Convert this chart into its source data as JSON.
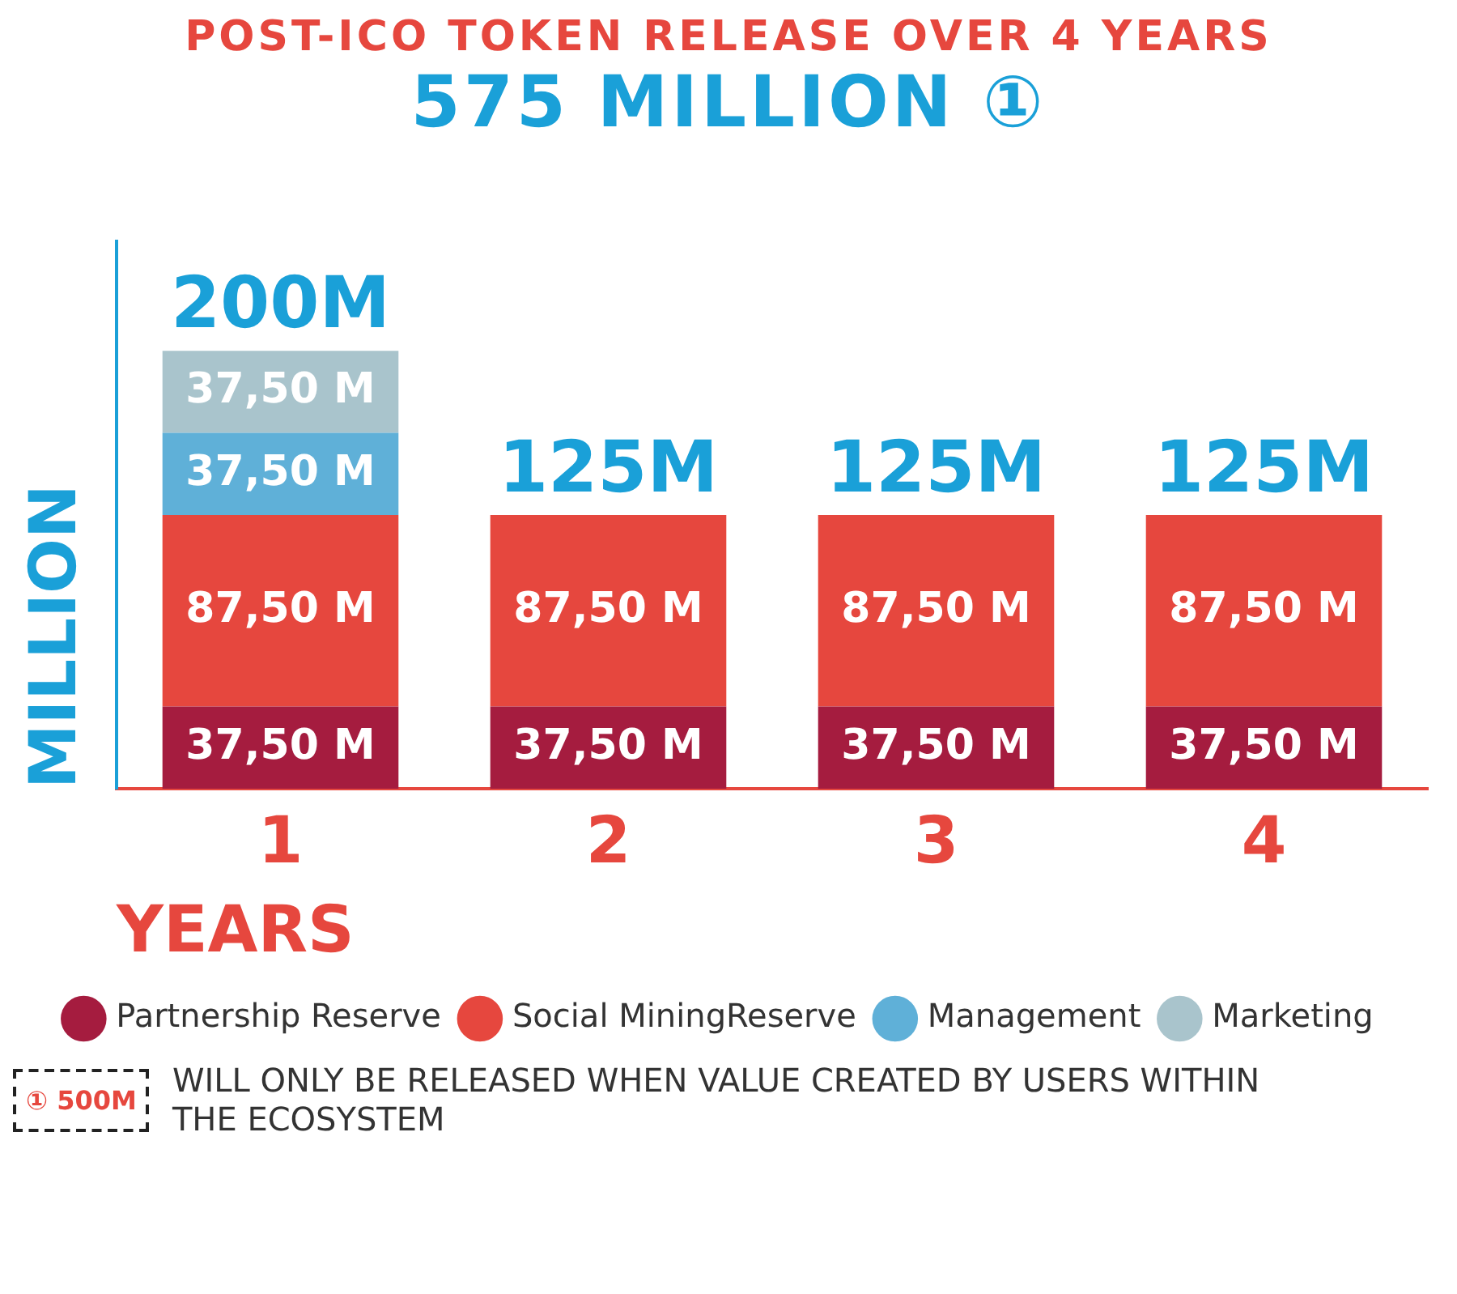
{
  "chart_data": {
    "type": "bar",
    "title": "POST-ICO TOKEN RELEASE OVER 4 YEARS",
    "subtitle": "575 MILLION ①",
    "xlabel": "YEARS",
    "ylabel": "MILLION",
    "categories": [
      "1",
      "2",
      "3",
      "4"
    ],
    "stacked": true,
    "tick_labels": "x",
    "legend": "bottom",
    "grid": false,
    "series": [
      {
        "name": "Partnership Reserve",
        "color": "#a51c3f",
        "values": [
          37.5,
          37.5,
          37.5,
          37.5
        ],
        "value_labels": [
          "37,50 M",
          "37,50 M",
          "37,50 M",
          "37,50 M"
        ]
      },
      {
        "name": "Social MiningReserve",
        "color": "#e6473e",
        "values": [
          87.5,
          87.5,
          87.5,
          87.5
        ],
        "value_labels": [
          "87,50 M",
          "87,50 M",
          "87,50 M",
          "87,50 M"
        ]
      },
      {
        "name": "Management",
        "color": "#5fb0d8",
        "values": [
          37.5,
          null,
          null,
          null
        ],
        "value_labels": [
          "37,50 M",
          null,
          null,
          null
        ]
      },
      {
        "name": "Marketing",
        "color": "#a9c4cc",
        "values": [
          37.5,
          null,
          null,
          null
        ],
        "value_labels": [
          "37,50 M",
          null,
          null,
          null
        ]
      }
    ],
    "totals": [
      "200M",
      "125M",
      "125M",
      "125M"
    ],
    "annotations": [
      "① 500M",
      "WILL ONLY BE RELEASED WHEN VALUE CREATED BY USERS WITHIN THE ECOSYSTEM"
    ]
  }
}
